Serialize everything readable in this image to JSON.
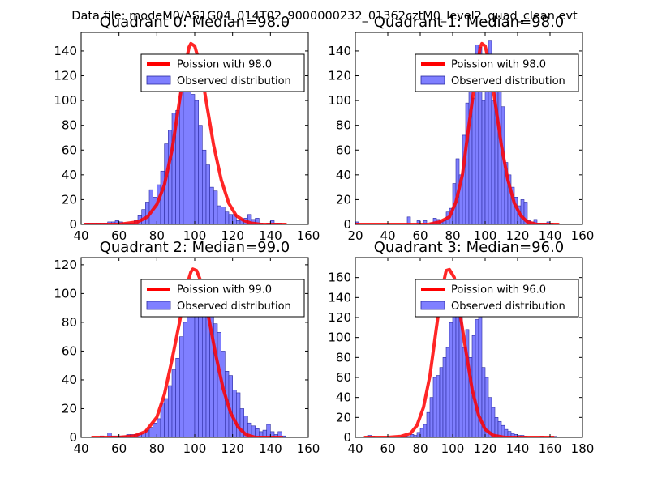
{
  "suptitle": "Data file: modeM0/AS1G04_014T02_9000000232_01362cztM0_level2_quad_clean.evt",
  "colors": {
    "bar_fill": "#7f7fff",
    "bar_stroke": "#2a2aa0",
    "curve": "#ff0000",
    "axis": "#000000"
  },
  "chart_data": [
    {
      "type": "bar",
      "title": "Quadrant 0: Median=98.0",
      "xlim": [
        40,
        160
      ],
      "ylim": [
        0,
        155
      ],
      "xticks": [
        "40",
        "60",
        "80",
        "100",
        "120",
        "140",
        "160"
      ],
      "yticks": [
        "0",
        "20",
        "40",
        "60",
        "80",
        "100",
        "120",
        "140"
      ],
      "legend": {
        "position": "top-right",
        "entries": [
          "Poission with 98.0",
          "Observed distribution"
        ]
      },
      "poisson_mean": 98.0,
      "curve_x": [
        42,
        60,
        70,
        75,
        80,
        84,
        88,
        91,
        94,
        97,
        98,
        100,
        103,
        106,
        110,
        114,
        118,
        122,
        126,
        130,
        135,
        140,
        148
      ],
      "curve_y": [
        0,
        0,
        2,
        6,
        16,
        32,
        60,
        90,
        120,
        143,
        146,
        144,
        128,
        100,
        64,
        36,
        17,
        7,
        3,
        1,
        0,
        0,
        0
      ],
      "bin_start": 42,
      "bin_width": 2,
      "counts": [
        1,
        1,
        1,
        1,
        1,
        1,
        2,
        2,
        3,
        2,
        1,
        1,
        1,
        3,
        7,
        12,
        18,
        28,
        22,
        32,
        43,
        65,
        76,
        90,
        92,
        120,
        127,
        112,
        105,
        100,
        80,
        60,
        48,
        30,
        27,
        15,
        14,
        10,
        8,
        8,
        3,
        4,
        5,
        8,
        4,
        5,
        1,
        0,
        1,
        3,
        1,
        1
      ]
    },
    {
      "type": "bar",
      "title": "Quadrant 1: Median=98.0",
      "xlim": [
        20,
        160
      ],
      "ylim": [
        0,
        155
      ],
      "xticks": [
        "20",
        "40",
        "60",
        "80",
        "100",
        "120",
        "140",
        "160"
      ],
      "yticks": [
        "0",
        "20",
        "40",
        "60",
        "80",
        "100",
        "120",
        "140"
      ],
      "legend": {
        "position": "top-right",
        "entries": [
          "Poission with 98.0",
          "Observed distribution"
        ]
      },
      "poisson_mean": 98.0,
      "curve_x": [
        20,
        50,
        65,
        72,
        78,
        82,
        86,
        90,
        94,
        97,
        98,
        100,
        103,
        106,
        110,
        114,
        118,
        122,
        126,
        132,
        140,
        145
      ],
      "curve_y": [
        0,
        0,
        0,
        2,
        6,
        18,
        40,
        80,
        118,
        143,
        146,
        144,
        128,
        100,
        64,
        36,
        17,
        7,
        2,
        0,
        0,
        0
      ],
      "bin_start": 20,
      "bin_width": 2,
      "counts": [
        2,
        0,
        0,
        0,
        0,
        0,
        0,
        0,
        0,
        0,
        0,
        0,
        0,
        0,
        0,
        0,
        6,
        0,
        0,
        3,
        0,
        3,
        0,
        1,
        5,
        4,
        2,
        3,
        10,
        13,
        33,
        53,
        40,
        72,
        98,
        110,
        102,
        145,
        143,
        100,
        128,
        148,
        100,
        111,
        113,
        95,
        50,
        40,
        30,
        22,
        15,
        20,
        18,
        3,
        2,
        4,
        1,
        1,
        1,
        2,
        1
      ]
    },
    {
      "type": "bar",
      "title": "Quadrant 2: Median=99.0",
      "xlim": [
        40,
        160
      ],
      "ylim": [
        0,
        125
      ],
      "xticks": [
        "40",
        "60",
        "80",
        "100",
        "120",
        "140",
        "160"
      ],
      "yticks": [
        "0",
        "20",
        "40",
        "60",
        "80",
        "100",
        "120"
      ],
      "legend": {
        "position": "top-right",
        "entries": [
          "Poission with 99.0",
          "Observed distribution"
        ]
      },
      "poisson_mean": 99.0,
      "curve_x": [
        46,
        60,
        68,
        74,
        80,
        84,
        88,
        92,
        95,
        98,
        99,
        101,
        104,
        107,
        111,
        115,
        119,
        123,
        127,
        132,
        138,
        146
      ],
      "curve_y": [
        0,
        0,
        1,
        4,
        14,
        30,
        54,
        80,
        102,
        115,
        117,
        116,
        106,
        86,
        58,
        34,
        17,
        7,
        2,
        0,
        0,
        0
      ],
      "bin_start": 44,
      "bin_width": 2,
      "counts": [
        0,
        0,
        0,
        1,
        0,
        3,
        1,
        1,
        1,
        1,
        2,
        2,
        2,
        3,
        3,
        5,
        7,
        10,
        13,
        24,
        27,
        36,
        47,
        55,
        70,
        80,
        85,
        100,
        92,
        97,
        93,
        90,
        92,
        79,
        73,
        60,
        46,
        43,
        33,
        31,
        20,
        15,
        10,
        8,
        6,
        4,
        5,
        9,
        4,
        2,
        4,
        1
      ]
    },
    {
      "type": "bar",
      "title": "Quadrant 3: Median=96.0",
      "xlim": [
        40,
        180
      ],
      "ylim": [
        0,
        180
      ],
      "xticks": [
        "40",
        "60",
        "80",
        "100",
        "120",
        "140",
        "160",
        "180"
      ],
      "yticks": [
        "0",
        "20",
        "40",
        "60",
        "80",
        "100",
        "120",
        "140",
        "160"
      ],
      "legend": {
        "position": "top-right",
        "entries": [
          "Poission with 96.0",
          "Observed distribution"
        ]
      },
      "poisson_mean": 96.0,
      "curve_x": [
        46,
        60,
        68,
        74,
        78,
        82,
        86,
        90,
        93,
        96,
        98,
        101,
        104,
        108,
        112,
        116,
        120,
        125,
        132,
        145,
        162
      ],
      "curve_y": [
        0,
        0,
        1,
        4,
        12,
        30,
        62,
        110,
        145,
        167,
        168,
        160,
        130,
        88,
        48,
        22,
        8,
        2,
        0,
        0,
        0
      ],
      "bin_start": 48,
      "bin_width": 2,
      "counts": [
        2,
        1,
        0,
        0,
        0,
        0,
        0,
        0,
        0,
        0,
        1,
        1,
        1,
        3,
        2,
        5,
        9,
        13,
        25,
        40,
        60,
        62,
        70,
        80,
        90,
        115,
        138,
        145,
        150,
        90,
        108,
        80,
        102,
        118,
        125,
        70,
        60,
        40,
        30,
        20,
        16,
        12,
        8,
        6,
        4,
        3,
        2,
        2,
        1,
        0,
        0,
        0,
        0,
        1,
        0,
        0,
        0,
        1
      ]
    }
  ]
}
